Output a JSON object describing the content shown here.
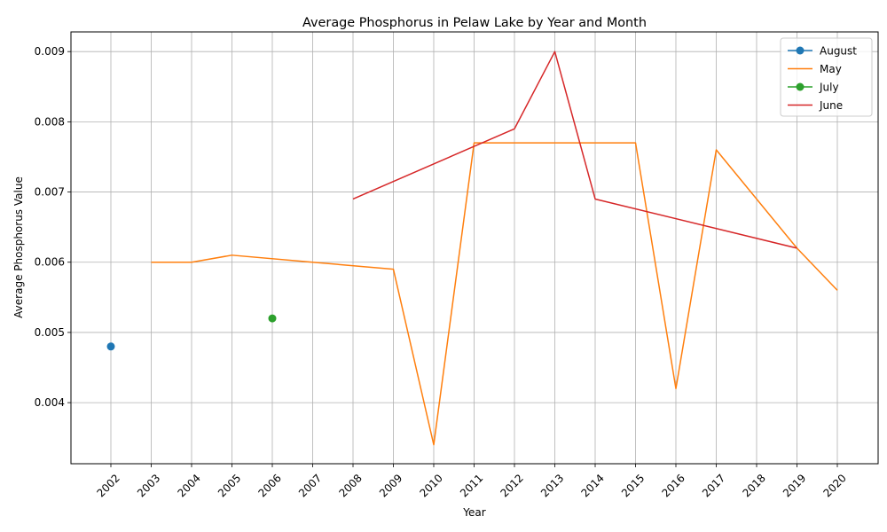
{
  "chart_data": {
    "type": "line",
    "title": "Average Phosphorus in Pelaw Lake by Year and Month",
    "xlabel": "Year",
    "ylabel": "Average Phosphorus Value",
    "categories": [
      "2002",
      "2003",
      "2004",
      "2005",
      "2006",
      "2007",
      "2008",
      "2009",
      "2010",
      "2011",
      "2012",
      "2013",
      "2014",
      "2015",
      "2016",
      "2017",
      "2018",
      "2019",
      "2020"
    ],
    "ylim": [
      0.00313,
      0.00928
    ],
    "yticks": [
      0.004,
      0.005,
      0.006,
      0.007,
      0.008,
      0.009
    ],
    "ytick_labels": [
      "0.004",
      "0.005",
      "0.006",
      "0.007",
      "0.008",
      "0.009"
    ],
    "grid": true,
    "legend_position": "top-right",
    "series": [
      {
        "name": "August",
        "color": "#1f77b4",
        "marker": true,
        "points": [
          {
            "x": "2002",
            "y": 0.0048
          }
        ]
      },
      {
        "name": "May",
        "color": "#ff7f0e",
        "marker": false,
        "points": [
          {
            "x": "2003",
            "y": 0.006
          },
          {
            "x": "2004",
            "y": 0.006
          },
          {
            "x": "2005",
            "y": 0.0061
          },
          {
            "x": "2007",
            "y": 0.006
          },
          {
            "x": "2009",
            "y": 0.0059
          },
          {
            "x": "2010",
            "y": 0.0034
          },
          {
            "x": "2011",
            "y": 0.0077
          },
          {
            "x": "2015",
            "y": 0.0077
          },
          {
            "x": "2016",
            "y": 0.0042
          },
          {
            "x": "2017",
            "y": 0.0076
          },
          {
            "x": "2019",
            "y": 0.0062
          },
          {
            "x": "2020",
            "y": 0.0056
          }
        ]
      },
      {
        "name": "July",
        "color": "#2ca02c",
        "marker": true,
        "points": [
          {
            "x": "2006",
            "y": 0.0052
          }
        ]
      },
      {
        "name": "June",
        "color": "#d62728",
        "marker": false,
        "points": [
          {
            "x": "2008",
            "y": 0.0069
          },
          {
            "x": "2012",
            "y": 0.0079
          },
          {
            "x": "2013",
            "y": 0.009
          },
          {
            "x": "2014",
            "y": 0.0069
          },
          {
            "x": "2019",
            "y": 0.0062
          }
        ]
      }
    ]
  }
}
